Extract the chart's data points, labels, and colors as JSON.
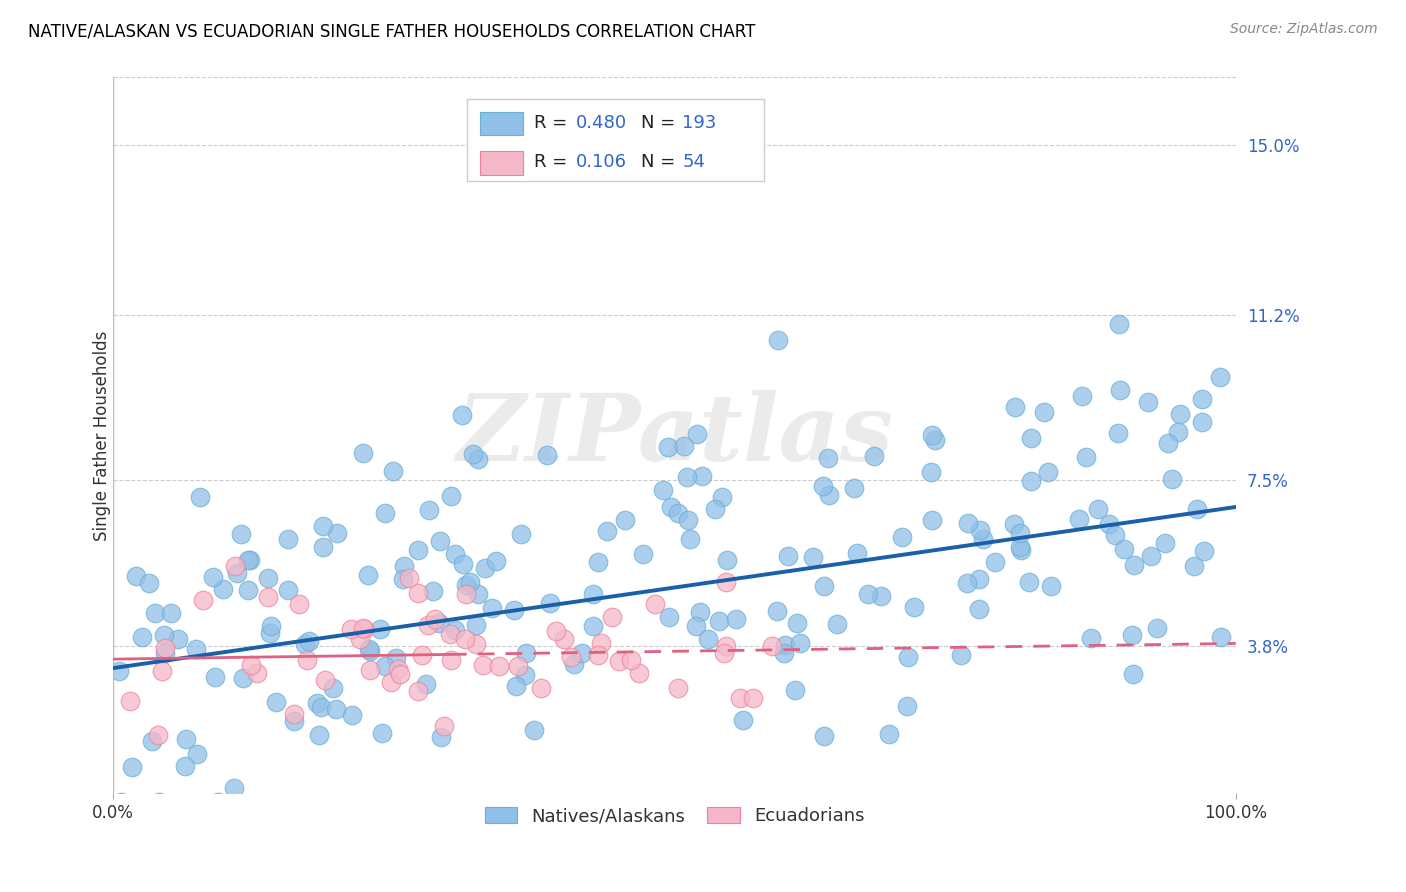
{
  "title": "NATIVE/ALASKAN VS ECUADORIAN SINGLE FATHER HOUSEHOLDS CORRELATION CHART",
  "source": "Source: ZipAtlas.com",
  "ylabel": "Single Father Households",
  "ytick_values": [
    3.8,
    7.5,
    11.2,
    15.0
  ],
  "xlim": [
    0,
    100
  ],
  "ylim": [
    0.5,
    16.5
  ],
  "native_color": "#90c0e8",
  "native_edge_color": "#6baed6",
  "ecuadorian_color": "#f5b8c8",
  "ecuadorian_edge_color": "#f08098",
  "native_line_color": "#1a5fa8",
  "ecuadorian_line_color": "#e06080",
  "background_color": "#ffffff",
  "grid_color": "#cccccc",
  "native_trend_y0": 3.3,
  "native_trend_y1": 6.9,
  "ecuadorian_trend_y0": 3.5,
  "ecuadorian_trend_y1": 3.85,
  "watermark": "ZIPatlas",
  "watermark_color": "#d8d8d8",
  "title_fontsize": 12,
  "source_fontsize": 10,
  "ytick_fontsize": 12,
  "xtick_fontsize": 12,
  "ylabel_fontsize": 12,
  "legend_r1": "0.480",
  "legend_n1": "193",
  "legend_r2": "0.106",
  "legend_n2": "54",
  "bottom_label1": "Natives/Alaskans",
  "bottom_label2": "Ecuadorians"
}
